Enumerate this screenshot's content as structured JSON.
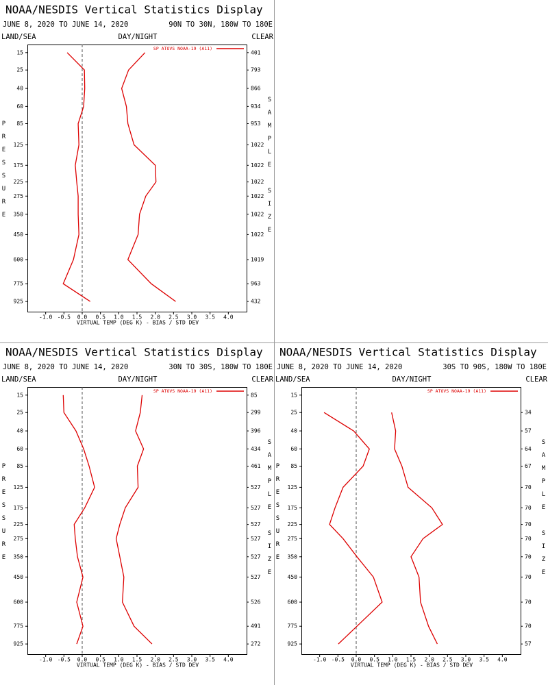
{
  "chart_data": [
    {
      "type": "line",
      "title": "NOAA/NESDIS Vertical Statistics Display",
      "subtitle": "JUNE 8, 2020 TO JUNE 14, 2020",
      "region": "90N TO 30N, 180W TO 180E",
      "labels": {
        "left": "LAND/SEA",
        "center": "DAY/NIGHT",
        "right": "CLEAR"
      },
      "ylabel": "PRESSURE",
      "y2label": "SAMPLE SIZE",
      "xlabel": "VIRTUAL TEMP (DEG K) - BIAS / STD DEV",
      "yscale": {
        "type": "pow",
        "exponent": 0.286
      },
      "ylim": [
        11.5,
        1020
      ],
      "yticks": [
        15,
        25,
        40,
        60,
        85,
        125,
        175,
        225,
        275,
        350,
        450,
        600,
        775,
        925
      ],
      "xlim": [
        -1.5,
        4.5
      ],
      "xticks": [
        {
          "value": -1.0,
          "label": "-1.0"
        },
        -0.5,
        {
          "value": 0,
          "label": "0.0"
        },
        0.5,
        {
          "value": 1,
          "label": "1.0"
        },
        1.5,
        {
          "value": 2,
          "label": "2.0"
        },
        2.5,
        {
          "value": 3,
          "label": "3.0"
        },
        3.5,
        {
          "value": 4,
          "label": "4.0"
        }
      ],
      "legend": "upper right",
      "series": [
        {
          "name": "SP ATOVS NOAA-19 (A11)",
          "color": "#dd0000",
          "bias": [
            -0.41,
            0.06,
            0.07,
            0.04,
            -0.11,
            -0.09,
            -0.19,
            -0.15,
            -0.11,
            -0.11,
            -0.09,
            -0.24,
            -0.52,
            0.22
          ],
          "std_dev": [
            1.72,
            1.27,
            1.08,
            1.21,
            1.25,
            1.42,
            2.0,
            2.02,
            1.74,
            1.57,
            1.53,
            1.25,
            1.89,
            2.56
          ]
        }
      ],
      "sample_size": [
        401,
        793,
        866,
        934,
        953,
        1022,
        1022,
        1022,
        1022,
        1022,
        1022,
        1019,
        963,
        432
      ]
    },
    {
      "type": "line",
      "title": "NOAA/NESDIS Vertical Statistics Display",
      "subtitle": "JUNE 8, 2020 TO JUNE 14, 2020",
      "region": "30N TO 30S, 180W TO 180E",
      "labels": {
        "left": "LAND/SEA",
        "center": "DAY/NIGHT",
        "right": "CLEAR"
      },
      "ylabel": "PRESSURE",
      "y2label": "SAMPLE SIZE",
      "xlabel": "VIRTUAL TEMP (DEG K) - BIAS / STD DEV",
      "yscale": {
        "type": "pow",
        "exponent": 0.286
      },
      "ylim": [
        11.5,
        1020
      ],
      "yticks": [
        15,
        25,
        40,
        60,
        85,
        125,
        175,
        225,
        275,
        350,
        450,
        600,
        775,
        925
      ],
      "xlim": [
        -1.5,
        4.5
      ],
      "xticks": [
        {
          "value": -1.0,
          "label": "-1.0"
        },
        -0.5,
        {
          "value": 0,
          "label": "0.0"
        },
        0.5,
        {
          "value": 1,
          "label": "1.0"
        },
        1.5,
        {
          "value": 2,
          "label": "2.0"
        },
        2.5,
        {
          "value": 3,
          "label": "3.0"
        },
        3.5,
        {
          "value": 4,
          "label": "4.0"
        }
      ],
      "legend": "upper right",
      "series": [
        {
          "name": "SP ATOVS NOAA-19 (A11)",
          "color": "#dd0000",
          "bias": [
            -0.52,
            -0.5,
            -0.17,
            0.04,
            0.19,
            0.34,
            0.07,
            -0.22,
            -0.19,
            -0.13,
            0.02,
            -0.15,
            0.02,
            -0.15
          ],
          "std_dev": [
            1.64,
            1.59,
            1.46,
            1.68,
            1.51,
            1.53,
            1.18,
            1.03,
            0.93,
            1.03,
            1.14,
            1.1,
            1.42,
            1.91
          ]
        }
      ],
      "sample_size": [
        85,
        299,
        396,
        434,
        461,
        527,
        527,
        527,
        527,
        527,
        527,
        526,
        491,
        272
      ]
    },
    {
      "type": "line",
      "title": "NOAA/NESDIS Vertical Statistics Display",
      "subtitle": "JUNE 8, 2020 TO JUNE 14, 2020",
      "region": "30S TO 90S, 180W TO 180E",
      "labels": {
        "left": "LAND/SEA",
        "center": "DAY/NIGHT",
        "right": "CLEAR"
      },
      "ylabel": "PRESSURE",
      "y2label": "SAMPLE SIZE",
      "xlabel": "VIRTUAL TEMP (DEG K) - BIAS / STD DEV",
      "yscale": {
        "type": "pow",
        "exponent": 0.286
      },
      "ylim": [
        11.5,
        1020
      ],
      "yticks": [
        15,
        25,
        40,
        60,
        85,
        125,
        175,
        225,
        275,
        350,
        450,
        600,
        775,
        925
      ],
      "xlim": [
        -1.5,
        4.5
      ],
      "xticks": [
        {
          "value": -1.0,
          "label": "-1.0"
        },
        -0.5,
        {
          "value": 0,
          "label": "0.0"
        },
        0.5,
        {
          "value": 1,
          "label": "1.0"
        },
        1.5,
        {
          "value": 2,
          "label": "2.0"
        },
        2.5,
        {
          "value": 3,
          "label": "3.0"
        },
        3.5,
        {
          "value": 4,
          "label": "4.0"
        }
      ],
      "legend": "upper right",
      "series": [
        {
          "name": "SP ATOVS NOAA-19 (A11)",
          "color": "#dd0000",
          "bias": [
            null,
            -0.88,
            -0.07,
            0.36,
            0.19,
            -0.36,
            -0.58,
            -0.73,
            -0.36,
            0.02,
            0.47,
            0.71,
            0.02,
            -0.49
          ],
          "std_dev": [
            null,
            0.97,
            1.08,
            1.05,
            1.25,
            1.42,
            2.07,
            2.36,
            1.83,
            1.5,
            1.72,
            1.76,
            1.98,
            2.22
          ]
        }
      ],
      "sample_size": [
        null,
        34,
        57,
        64,
        67,
        70,
        70,
        70,
        70,
        70,
        70,
        70,
        70,
        57
      ]
    }
  ]
}
